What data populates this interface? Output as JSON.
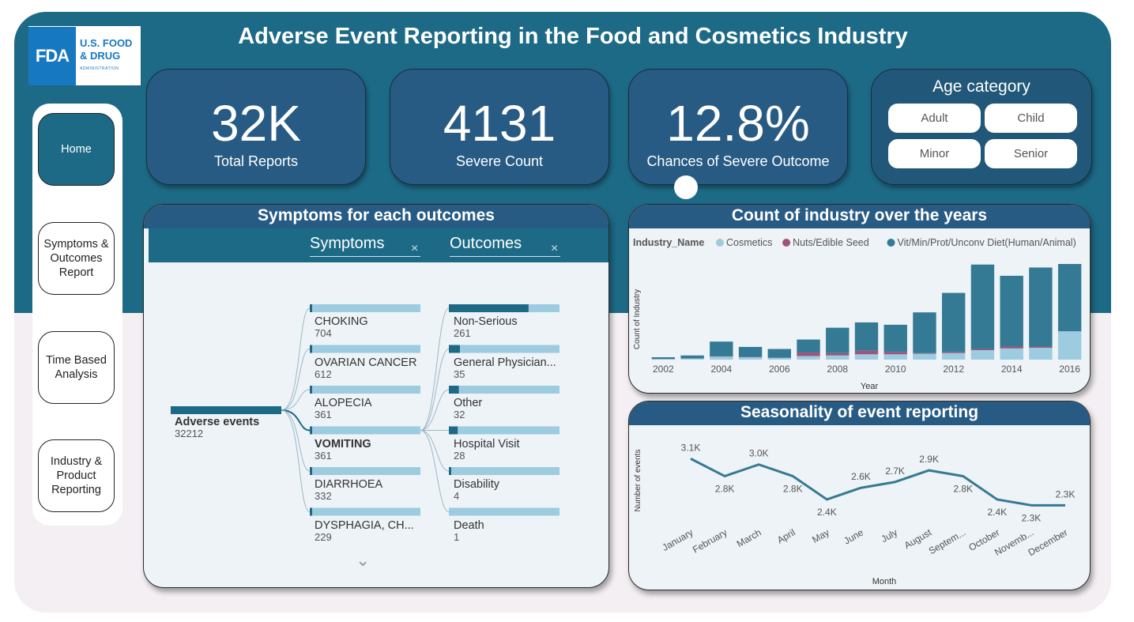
{
  "header": {
    "title": "Adverse Event Reporting in the Food and Cosmetics Industry"
  },
  "logo": {
    "mark": "FDA",
    "line1": "U.S. FOOD",
    "line2": "& DRUG",
    "line3": "ADMINISTRATION"
  },
  "nav": {
    "home": "Home",
    "symptoms": "Symptoms & Outcomes Report",
    "time": "Time Based Analysis",
    "industry": "Industry & Product Reporting"
  },
  "kpis": [
    {
      "value": "32K",
      "label": "Total Reports"
    },
    {
      "value": "4131",
      "label": "Severe Count"
    },
    {
      "value": "12.8%",
      "label": "Chances of Severe Outcome"
    }
  ],
  "age": {
    "title": "Age category",
    "options": [
      "Adult",
      "Child",
      "Minor",
      "Senior"
    ]
  },
  "tree": {
    "title": "Symptoms for each outcomes",
    "field1": "Symptoms",
    "field2": "Outcomes",
    "close": "×",
    "root": {
      "name": "Adverse events",
      "count": "32212"
    },
    "symptoms": [
      {
        "name": "CHOKING",
        "count": "704",
        "share": 0.02
      },
      {
        "name": "OVARIAN CANCER",
        "count": "612",
        "share": 0.02
      },
      {
        "name": "ALOPECIA",
        "count": "361",
        "share": 0.01
      },
      {
        "name": "VOMITING",
        "count": "361",
        "share": 0.01,
        "selected": true
      },
      {
        "name": "DIARRHOEA",
        "count": "332",
        "share": 0.01
      },
      {
        "name": "DYSPHAGIA, CH...",
        "count": "229",
        "share": 0.01
      }
    ],
    "outcomes": [
      {
        "name": "Non-Serious",
        "count": "261",
        "share": 0.72
      },
      {
        "name": "General Physician...",
        "count": "35",
        "share": 0.1
      },
      {
        "name": "Other",
        "count": "32",
        "share": 0.09
      },
      {
        "name": "Hospital Visit",
        "count": "28",
        "share": 0.08
      },
      {
        "name": "Disability",
        "count": "4",
        "share": 0.01
      },
      {
        "name": "Death",
        "count": "1",
        "share": 0.0
      }
    ]
  },
  "colors": {
    "dark": "#1d6a86",
    "light": "#9dcbe0",
    "nuts": "#a0537a",
    "panelHead": "#285b84"
  },
  "chart_data": [
    {
      "type": "bar",
      "title": "Count of industry over the years",
      "legend_title": "Industry_Name",
      "xlabel": "Year",
      "ylabel": "Count of Industry",
      "x_ticks": [
        "2002",
        "2004",
        "2006",
        "2008",
        "2010",
        "2012",
        "2014",
        "2016"
      ],
      "categories": [
        2002,
        2003,
        2004,
        2005,
        2006,
        2007,
        2008,
        2009,
        2010,
        2011,
        2012,
        2013,
        2014,
        2015,
        2016
      ],
      "series": [
        {
          "name": "Cosmetics",
          "color": "#9dcbe0",
          "values": [
            10,
            20,
            50,
            40,
            30,
            60,
            70,
            90,
            90,
            100,
            110,
            160,
            190,
            200,
            480
          ]
        },
        {
          "name": "Nuts/Edible Seed",
          "color": "#a0537a",
          "values": [
            0,
            0,
            5,
            5,
            0,
            60,
            40,
            60,
            40,
            10,
            20,
            20,
            30,
            20,
            0
          ]
        },
        {
          "name": "Vit/Min/Prot/Unconv Diet(Human/Animal)",
          "color": "#347a94",
          "values": [
            30,
            50,
            250,
            170,
            150,
            220,
            430,
            480,
            460,
            690,
            1000,
            1430,
            1200,
            1340,
            1140
          ]
        }
      ],
      "legend": "top-left"
    },
    {
      "type": "line",
      "title": "Seasonality of event reporting",
      "xlabel": "Month",
      "ylabel": "Number of events",
      "categories": [
        "January",
        "February",
        "March",
        "April",
        "May",
        "June",
        "July",
        "August",
        "Septem...",
        "October",
        "Novemb...",
        "December"
      ],
      "values": [
        3100,
        2800,
        3000,
        2800,
        2400,
        2600,
        2700,
        2900,
        2800,
        2400,
        2300,
        2300
      ],
      "labels": [
        "3.1K",
        "2.8K",
        "3.0K",
        "2.8K",
        "2.4K",
        "2.6K",
        "2.7K",
        "2.9K",
        "2.8K",
        "2.4K",
        "2.3K",
        "2.3K"
      ],
      "ylim": [
        2250,
        3200
      ],
      "color": "#347a94"
    }
  ]
}
